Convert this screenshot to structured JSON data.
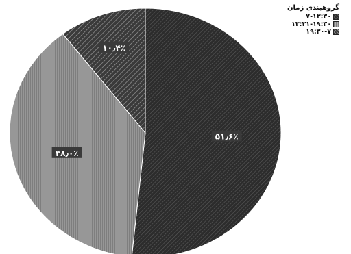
{
  "chart_data": {
    "type": "pie",
    "legend_title": "گروهبندی زمان",
    "legend_position": "top-right",
    "categories": [
      "۷-۱۳:۳۰",
      "۱۳:۳۱-۱۹:۳۰",
      "۱۹:۳۰-۷"
    ],
    "values": [
      51.6,
      38.0,
      10.4
    ],
    "data_labels": [
      "۵۱٫۶٪",
      "۳۸٫۰٪",
      "۱۰٫۴٪"
    ],
    "colors": [
      "#2f2f2f",
      "#8c8c8c",
      "#4a4a4a"
    ],
    "patterns": [
      "diagonal-dense",
      "vertical-lines",
      "diagonal-wide"
    ]
  }
}
